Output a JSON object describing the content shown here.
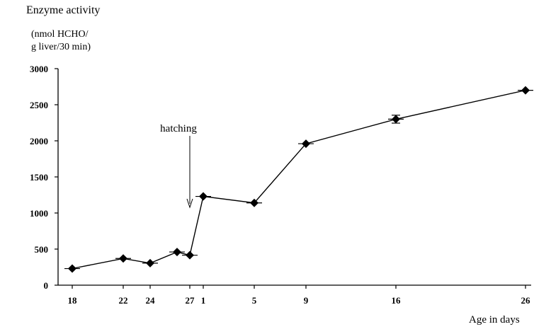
{
  "chart_data": {
    "type": "line",
    "ylabel_line1": "Enzyme activity",
    "ylabel_line2": "(nmol HCHO/",
    "ylabel_line3": "g liver/30 min)",
    "xlabel": "Age in days",
    "ylim": [
      0,
      3000
    ],
    "yticks": [
      0,
      500,
      1000,
      1500,
      2000,
      2500,
      3000
    ],
    "x_tick_labels": [
      "18",
      "22",
      "24",
      "27",
      "1",
      "5",
      "9",
      "16",
      "26"
    ],
    "annotation": "hatching",
    "points": [
      {
        "x": "18",
        "y": 230,
        "err": 15
      },
      {
        "x": "22",
        "y": 370,
        "err": 15
      },
      {
        "x": "24",
        "y": 305,
        "err": 15
      },
      {
        "x": "26",
        "y": 460,
        "err": 15
      },
      {
        "x": "27",
        "y": 415,
        "err": 15
      },
      {
        "x": "1",
        "y": 1230,
        "err": 15
      },
      {
        "x": "5",
        "y": 1140,
        "err": 15
      },
      {
        "x": "9",
        "y": 1960,
        "err": 15
      },
      {
        "x": "16",
        "y": 2300,
        "err": 55
      },
      {
        "x": "26",
        "y": 2700,
        "err": 15
      }
    ],
    "grid": false,
    "legend": "none"
  }
}
